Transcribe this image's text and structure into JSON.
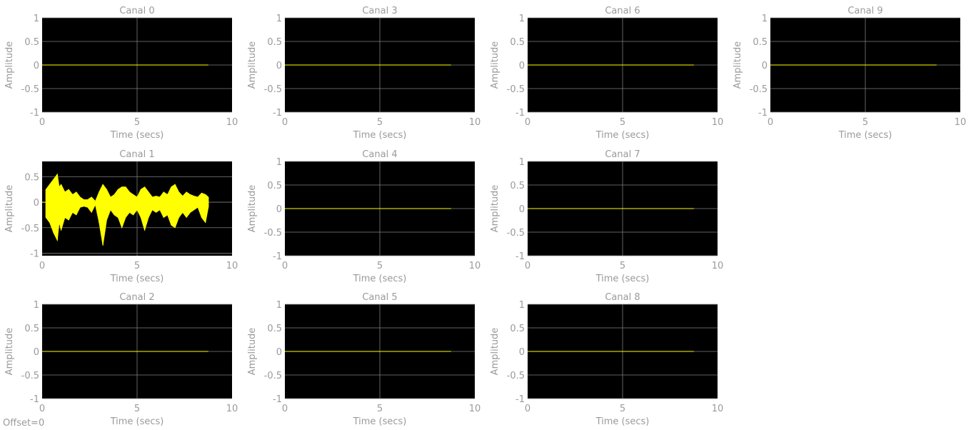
{
  "offset_text": "Offset=0",
  "colors": {
    "background": "#000000",
    "trace": "#ffff00",
    "grid": "#7f7f7f",
    "text": "#9a9a9a"
  },
  "chart_data": [
    {
      "type": "line",
      "title": "Canal 0",
      "xlabel": "Time (secs)",
      "ylabel": "Amplitude",
      "xlim": [
        0,
        10
      ],
      "ylim": [
        -1,
        1
      ],
      "grid": true,
      "xticks": [
        "0",
        "5",
        "10"
      ],
      "yticks": [
        "1",
        "0.5",
        "0",
        "-0.5",
        "-1"
      ],
      "series": [
        {
          "x": [
            0,
            8.75
          ],
          "y": [
            0,
            0
          ]
        }
      ]
    },
    {
      "type": "line",
      "title": "Canal 1",
      "xlabel": "Time (secs)",
      "ylabel": "Amplitude",
      "xlim": [
        0,
        10
      ],
      "ylim": [
        -1.05,
        0.8
      ],
      "grid": true,
      "xticks": [
        "0",
        "5",
        "10"
      ],
      "yticks": [
        "0.5",
        "0",
        "-0.5",
        "-1"
      ],
      "series": [
        {
          "x": [
            0,
            8.75
          ],
          "y": [
            0,
            0
          ],
          "envelope": {
            "x": [
              0.2,
              0.4,
              0.6,
              0.8,
              0.9,
              1.0,
              1.2,
              1.4,
              1.6,
              1.8,
              2.0,
              2.2,
              2.4,
              2.6,
              2.8,
              3.0,
              3.2,
              3.4,
              3.6,
              3.8,
              4.0,
              4.2,
              4.4,
              4.6,
              4.8,
              5.0,
              5.2,
              5.4,
              5.6,
              5.8,
              6.0,
              6.2,
              6.4,
              6.6,
              6.8,
              7.0,
              7.2,
              7.4,
              7.6,
              7.8,
              8.0,
              8.2,
              8.4,
              8.6,
              8.75
            ],
            "upper": [
              0.25,
              0.35,
              0.45,
              0.55,
              0.3,
              0.35,
              0.2,
              0.25,
              0.15,
              0.2,
              0.1,
              0.05,
              0.05,
              0.1,
              0.02,
              0.2,
              0.35,
              0.25,
              0.1,
              0.15,
              0.25,
              0.3,
              0.3,
              0.2,
              0.15,
              0.1,
              0.25,
              0.3,
              0.2,
              0.1,
              0.12,
              0.1,
              0.2,
              0.15,
              0.3,
              0.35,
              0.2,
              0.12,
              0.2,
              0.15,
              0.12,
              0.1,
              0.18,
              0.15,
              0.1
            ],
            "lower": [
              -0.3,
              -0.4,
              -0.6,
              -0.75,
              -0.4,
              -0.55,
              -0.3,
              -0.35,
              -0.2,
              -0.25,
              -0.1,
              -0.08,
              -0.1,
              -0.2,
              -0.05,
              -0.4,
              -0.85,
              -0.35,
              -0.15,
              -0.25,
              -0.3,
              -0.5,
              -0.3,
              -0.2,
              -0.25,
              -0.15,
              -0.3,
              -0.55,
              -0.3,
              -0.15,
              -0.2,
              -0.15,
              -0.3,
              -0.25,
              -0.45,
              -0.5,
              -0.3,
              -0.2,
              -0.3,
              -0.2,
              -0.15,
              -0.1,
              -0.3,
              -0.4,
              -0.1
            ]
          }
        }
      ]
    },
    {
      "type": "line",
      "title": "Canal 2",
      "xlabel": "Time (secs)",
      "ylabel": "Amplitude",
      "xlim": [
        0,
        10
      ],
      "ylim": [
        -1,
        1
      ],
      "grid": true,
      "xticks": [
        "0",
        "5",
        "10"
      ],
      "yticks": [
        "1",
        "0.5",
        "0",
        "-0.5",
        "-1"
      ],
      "series": [
        {
          "x": [
            0,
            8.75
          ],
          "y": [
            0,
            0
          ]
        }
      ]
    },
    {
      "type": "line",
      "title": "Canal 3",
      "xlabel": "Time (secs)",
      "ylabel": "Amplitude",
      "xlim": [
        0,
        10
      ],
      "ylim": [
        -1,
        1
      ],
      "grid": true,
      "xticks": [
        "0",
        "5",
        "10"
      ],
      "yticks": [
        "1",
        "0.5",
        "0",
        "-0.5",
        "-1"
      ],
      "series": [
        {
          "x": [
            0,
            8.75
          ],
          "y": [
            0,
            0
          ]
        }
      ]
    },
    {
      "type": "line",
      "title": "Canal 4",
      "xlabel": "Time (secs)",
      "ylabel": "Amplitude",
      "xlim": [
        0,
        10
      ],
      "ylim": [
        -1,
        1
      ],
      "grid": true,
      "xticks": [
        "0",
        "5",
        "10"
      ],
      "yticks": [
        "1",
        "0.5",
        "0",
        "-0.5",
        "-1"
      ],
      "series": [
        {
          "x": [
            0,
            8.75
          ],
          "y": [
            0,
            0
          ]
        }
      ]
    },
    {
      "type": "line",
      "title": "Canal 5",
      "xlabel": "Time (secs)",
      "ylabel": "Amplitude",
      "xlim": [
        0,
        10
      ],
      "ylim": [
        -1,
        1
      ],
      "grid": true,
      "xticks": [
        "0",
        "5",
        "10"
      ],
      "yticks": [
        "1",
        "0.5",
        "0",
        "-0.5",
        "-1"
      ],
      "series": [
        {
          "x": [
            0,
            8.75
          ],
          "y": [
            0,
            0
          ]
        }
      ]
    },
    {
      "type": "line",
      "title": "Canal 6",
      "xlabel": "Time (secs)",
      "ylabel": "Amplitude",
      "xlim": [
        0,
        10
      ],
      "ylim": [
        -1,
        1
      ],
      "grid": true,
      "xticks": [
        "0",
        "5",
        "10"
      ],
      "yticks": [
        "1",
        "0.5",
        "0",
        "-0.5",
        "-1"
      ],
      "series": [
        {
          "x": [
            0,
            8.75
          ],
          "y": [
            0,
            0
          ]
        }
      ]
    },
    {
      "type": "line",
      "title": "Canal 7",
      "xlabel": "Time (secs)",
      "ylabel": "Amplitude",
      "xlim": [
        0,
        10
      ],
      "ylim": [
        -1,
        1
      ],
      "grid": true,
      "xticks": [
        "0",
        "5",
        "10"
      ],
      "yticks": [
        "1",
        "0.5",
        "0",
        "-0.5",
        "-1"
      ],
      "series": [
        {
          "x": [
            0,
            8.75
          ],
          "y": [
            0,
            0
          ]
        }
      ]
    },
    {
      "type": "line",
      "title": "Canal 8",
      "xlabel": "Time (secs)",
      "ylabel": "Amplitude",
      "xlim": [
        0,
        10
      ],
      "ylim": [
        -1,
        1
      ],
      "grid": true,
      "xticks": [
        "0",
        "5",
        "10"
      ],
      "yticks": [
        "1",
        "0.5",
        "0",
        "-0.5",
        "-1"
      ],
      "series": [
        {
          "x": [
            0,
            8.75
          ],
          "y": [
            0,
            0
          ]
        }
      ]
    },
    {
      "type": "line",
      "title": "Canal 9",
      "xlabel": "Time (secs)",
      "ylabel": "Amplitude",
      "xlim": [
        0,
        10
      ],
      "ylim": [
        -1,
        1
      ],
      "grid": true,
      "xticks": [
        "0",
        "5",
        "10"
      ],
      "yticks": [
        "1",
        "0.5",
        "0",
        "-0.5",
        "-1"
      ],
      "series": [
        {
          "x": [
            0,
            8.75
          ],
          "y": [
            0,
            0
          ]
        }
      ]
    }
  ]
}
